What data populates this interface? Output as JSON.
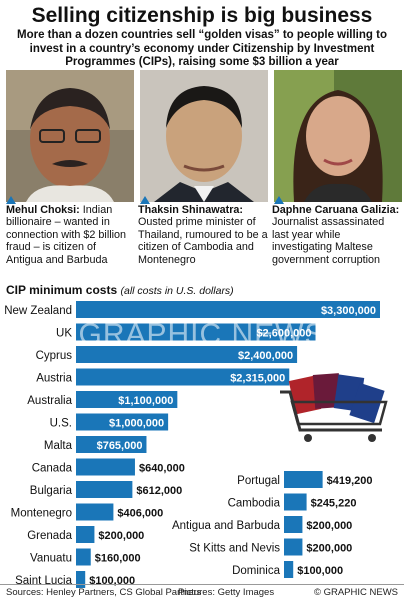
{
  "header": {
    "title": "Selling citizenship is big business",
    "subtitle": "More than a dozen countries sell “golden visas” to people willing to invest in a country’s economy under Citizenship by Investment Programmes (CIPs), raising some $3 billion a year"
  },
  "people": [
    {
      "name": "Mehul Choksi:",
      "text": "Indian billionaire – wanted in connection with $2 billion fraud – is citizen of Antigua and Barbuda"
    },
    {
      "name": "Thaksin Shinawatra:",
      "text": "Ousted prime minister of Thailand, rumoured to be a citizen of Cambodia and Montenegro"
    },
    {
      "name": "Daphne Caruana Galizia:",
      "text": "Journalist assassinated last year while investigating Maltese government corruption"
    }
  ],
  "chart_heading": {
    "title": "CIP minimum costs",
    "note": "(all costs in U.S. dollars)"
  },
  "watermark": "GRAPHIC NEWS",
  "footer": {
    "sources": "Sources: Henley Partners, CS Global Partners",
    "pictures": "Pictures: Getty Images",
    "copyright": "© GRAPHIC NEWS"
  },
  "colors": {
    "bar": "#1a76b8",
    "bar_label_inside": "#ffffff"
  },
  "chart_data": {
    "type": "bar",
    "orientation": "horizontal",
    "title": "CIP minimum costs",
    "subtitle": "(all costs in U.S. dollars)",
    "groups": [
      {
        "categories": [
          "New Zealand",
          "UK",
          "Cyprus",
          "Austria",
          "Australia",
          "U.S.",
          "Malta",
          "Canada",
          "Bulgaria",
          "Montenegro",
          "Grenada",
          "Vanuatu",
          "Saint Lucia"
        ],
        "values": [
          3300000,
          2600000,
          2400000,
          2315000,
          1100000,
          1000000,
          765000,
          640000,
          612000,
          406000,
          200000,
          160000,
          100000
        ],
        "labels": [
          "$3,300,000",
          "$2,600,000",
          "$2,400,000",
          "$2,315,000",
          "$1,100,000",
          "$1,000,000",
          "$765,000",
          "$640,000",
          "$612,000",
          "$406,000",
          "$200,000",
          "$160,000",
          "$100,000"
        ]
      },
      {
        "categories": [
          "Portugal",
          "Cambodia",
          "Antigua and Barbuda",
          "St Kitts and Nevis",
          "Dominica"
        ],
        "values": [
          419200,
          245220,
          200000,
          200000,
          100000
        ],
        "labels": [
          "$419,200",
          "$245,220",
          "$200,000",
          "$200,000",
          "$100,000"
        ]
      }
    ]
  }
}
